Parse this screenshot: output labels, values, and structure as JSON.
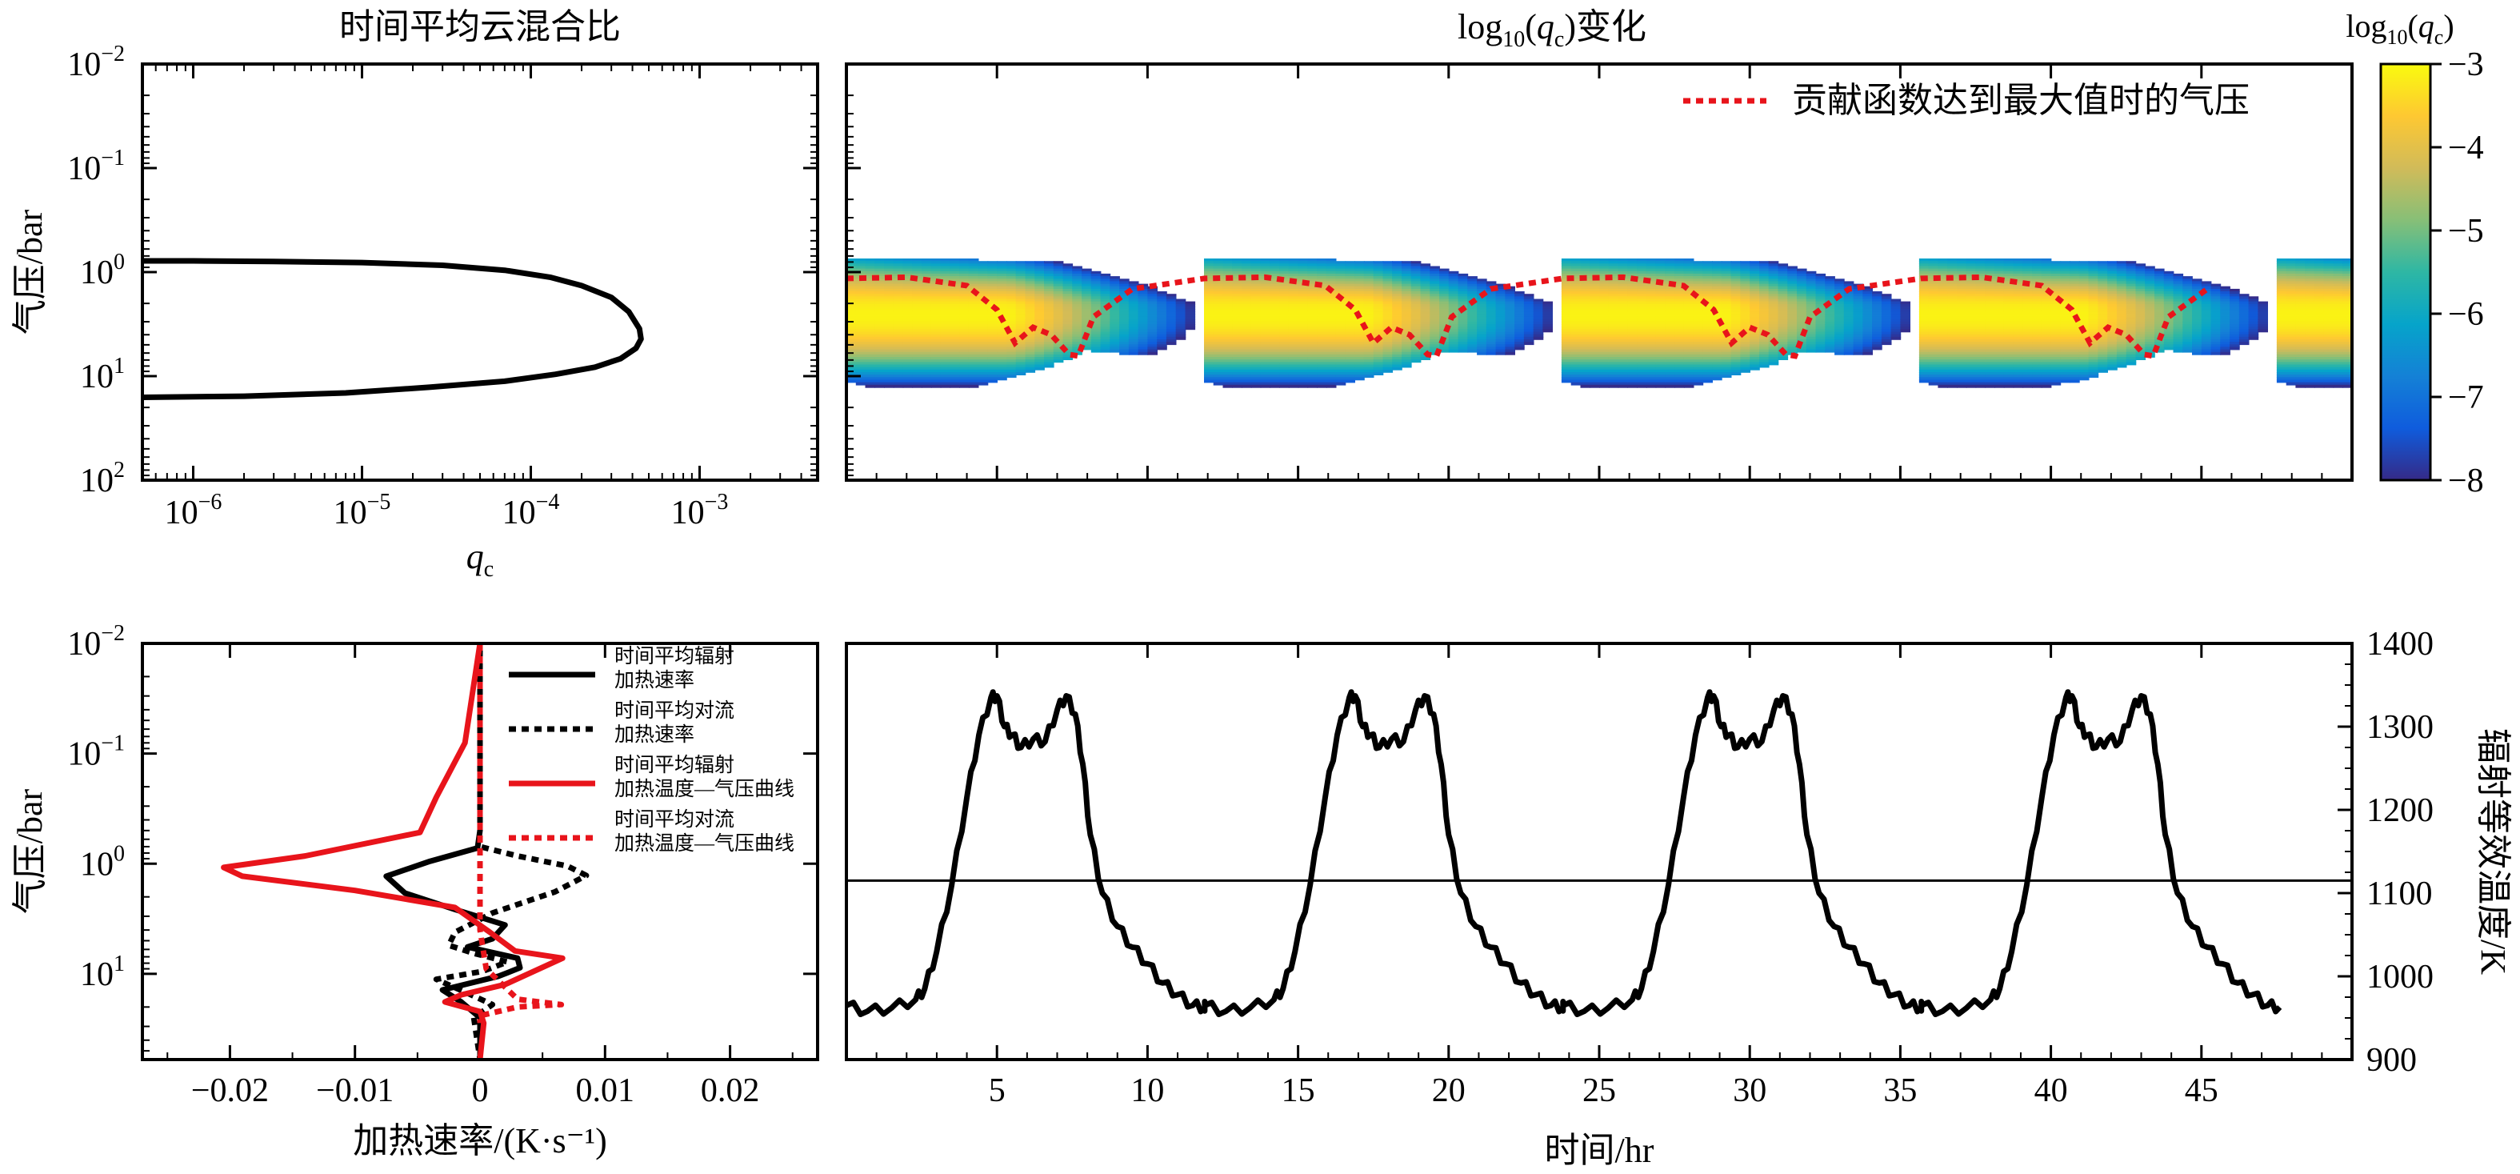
{
  "chart_data": [
    {
      "id": "panel-a",
      "type": "line",
      "title": "时间平均云混合比",
      "xlabel": "q",
      "xlabel_sub": "c",
      "ylabel": "气压/bar",
      "xscale": "log",
      "yscale": "log",
      "xlim": [
        5e-07,
        0.005
      ],
      "ylim": [
        100,
        0.01
      ],
      "y_inverted": true,
      "xticks": [
        1e-06,
        1e-05,
        0.0001,
        0.001
      ],
      "xtick_exponents": [
        "−6",
        "−5",
        "−4",
        "−3"
      ],
      "yticks": [
        0.01,
        0.1,
        1,
        10,
        100
      ],
      "ytick_exponents": [
        "−2",
        "−1",
        "0",
        "1",
        "2"
      ],
      "tick_base": "10",
      "series": [
        {
          "color": "#000000",
          "points": [
            [
              5e-07,
              0.78
            ],
            [
              1e-06,
              0.78
            ],
            [
              3e-06,
              0.79
            ],
            [
              1e-05,
              0.81
            ],
            [
              3e-05,
              0.86
            ],
            [
              7e-05,
              0.96
            ],
            [
              0.00013,
              1.12
            ],
            [
              0.0002,
              1.35
            ],
            [
              0.0003,
              1.75
            ],
            [
              0.00038,
              2.4
            ],
            [
              0.00044,
              3.5
            ],
            [
              0.00045,
              4.4
            ],
            [
              0.00042,
              5.4
            ],
            [
              0.00034,
              6.8
            ],
            [
              0.00024,
              8.2
            ],
            [
              0.00014,
              9.6
            ],
            [
              7e-05,
              11.2
            ],
            [
              2.5e-05,
              12.8
            ],
            [
              8e-06,
              14.5
            ],
            [
              2e-06,
              15.6
            ],
            [
              5e-07,
              16.0
            ]
          ]
        }
      ]
    },
    {
      "id": "panel-b",
      "type": "heatmap",
      "title_prefix": "log",
      "title_sub": "10",
      "title_mid": "(",
      "title_var": "q",
      "title_var_sub": "c",
      "title_suffix": ")变化",
      "legend": "贡献函数达到最大值时的气压",
      "colorbar_label_prefix": "log",
      "colorbar_label_sub": "10",
      "colorbar_label_mid": "(",
      "colorbar_label_var": "q",
      "colorbar_label_var_sub": "c",
      "colorbar_label_suffix": ")",
      "colorbar_range": [
        -8,
        -3
      ],
      "colorbar_ticks": [
        "−3",
        "−4",
        "−5",
        "−6",
        "−7",
        "−8"
      ],
      "colormap_stops": [
        "#352a87",
        "#0f5cdd",
        "#1481d6",
        "#06a4ca",
        "#2eb7a4",
        "#87bf77",
        "#d1bb59",
        "#fec832",
        "#f9fb0e"
      ],
      "xlim": [
        0,
        50
      ],
      "ylim": [
        100,
        0.01
      ],
      "period_hr": 11.9,
      "cycle_starts_hr": [
        0,
        11.9,
        23.8,
        35.7
      ],
      "upper_boundary_bar": [
        0.75,
        0.78
      ],
      "lower_boundary_bar": [
        5.5,
        19.0
      ],
      "peak_bar": 2.6,
      "contribution_pressure_bar": {
        "hr": [
          0,
          2,
          4,
          5,
          5.6,
          6.2,
          6.8,
          7.4,
          7.7,
          8.2,
          9.5,
          12.5,
          14.8,
          16.6,
          17.5,
          18.1,
          18.7,
          19.3,
          19.6
        ],
        "bar": [
          1.15,
          1.12,
          1.35,
          2.3,
          4.8,
          3.4,
          4.0,
          6.2,
          6.4,
          2.7,
          1.45,
          1.12,
          1.25,
          2.1,
          4.8,
          3.4,
          4.0,
          6.2,
          6.4
        ]
      }
    },
    {
      "id": "panel-c",
      "type": "line",
      "xlabel": "加热速率/(K·s⁻¹)",
      "ylabel": "气压/bar",
      "xlim": [
        -0.027,
        0.027
      ],
      "ylim": [
        60,
        0.01
      ],
      "yscale": "log",
      "y_inverted": true,
      "xticks": [
        -0.02,
        -0.01,
        0,
        0.01,
        0.02
      ],
      "xtick_labels": [
        "−0.02",
        "−0.01",
        "0",
        "0.01",
        "0.02"
      ],
      "yticks": [
        0.01,
        0.1,
        1,
        10
      ],
      "ytick_exponents": [
        "−2",
        "−1",
        "0",
        "1"
      ],
      "tick_base": "10",
      "series": [
        {
          "name": "时间平均辐射加热速率",
          "name_lines": [
            "时间平均辐射",
            "加热速率"
          ],
          "color": "#000000",
          "dash": "solid",
          "points": [
            [
              0,
              0.01
            ],
            [
              0,
              0.5
            ],
            [
              -0.0002,
              0.72
            ],
            [
              -0.004,
              0.95
            ],
            [
              -0.0075,
              1.3
            ],
            [
              -0.006,
              1.85
            ],
            [
              -0.002,
              2.6
            ],
            [
              0.002,
              3.6
            ],
            [
              0.001,
              4.8
            ],
            [
              -0.001,
              5.7
            ],
            [
              0.003,
              7.2
            ],
            [
              0.0032,
              8.8
            ],
            [
              0.0015,
              10.5
            ],
            [
              -0.003,
              14
            ],
            [
              -0.0015,
              18
            ],
            [
              0,
              25
            ],
            [
              0,
              60
            ]
          ]
        },
        {
          "name": "时间平均对流加热速率",
          "name_lines": [
            "时间平均对流",
            "加热速率"
          ],
          "color": "#000000",
          "dash": "dotted",
          "points": [
            [
              0,
              0.01
            ],
            [
              0,
              0.7
            ],
            [
              0.003,
              0.85
            ],
            [
              0.007,
              1.05
            ],
            [
              0.0085,
              1.28
            ],
            [
              0.006,
              1.8
            ],
            [
              0.001,
              2.8
            ],
            [
              -0.002,
              4.2
            ],
            [
              -0.0025,
              5.5
            ],
            [
              -0.0005,
              6.5
            ],
            [
              0.0022,
              7.8
            ],
            [
              0.0002,
              9.5
            ],
            [
              -0.0035,
              11.2
            ],
            [
              -0.001,
              15
            ],
            [
              0.001,
              19
            ],
            [
              -0.0005,
              25
            ],
            [
              0,
              60
            ]
          ]
        },
        {
          "name": "时间平均辐射加热温度—气压曲线",
          "name_lines": [
            "时间平均辐射",
            "加热温度—气压曲线"
          ],
          "color": "#e8141b",
          "dash": "solid",
          "points": [
            [
              0,
              0.01
            ],
            [
              -0.0012,
              0.08
            ],
            [
              -0.0035,
              0.25
            ],
            [
              -0.0048,
              0.52
            ],
            [
              -0.014,
              0.85
            ],
            [
              -0.0205,
              1.08
            ],
            [
              -0.019,
              1.3
            ],
            [
              -0.01,
              1.75
            ],
            [
              -0.002,
              2.5
            ],
            [
              0.0008,
              4.2
            ],
            [
              0.0028,
              6.2
            ],
            [
              0.0066,
              7.2
            ],
            [
              0.002,
              12.5
            ],
            [
              -0.0015,
              15.5
            ],
            [
              -0.0028,
              18
            ],
            [
              0,
              22
            ],
            [
              0.0003,
              28
            ],
            [
              0,
              60
            ]
          ]
        },
        {
          "name": "时间平均对流加热温度—气压曲线",
          "name_lines": [
            "时间平均对流",
            "加热温度—气压曲线"
          ],
          "color": "#e8141b",
          "dash": "dotted",
          "points": [
            [
              0,
              0.01
            ],
            [
              0,
              4
            ],
            [
              0.0005,
              9
            ],
            [
              0.003,
              17
            ],
            [
              0.0065,
              19
            ],
            [
              0.003,
              20
            ],
            [
              0,
              24
            ],
            [
              0,
              28
            ]
          ]
        }
      ]
    },
    {
      "id": "panel-d",
      "type": "line",
      "xlabel": "时间/hr",
      "ylabel": "辐射等效温度/K",
      "xlim": [
        0,
        50
      ],
      "ylim": [
        900,
        1400
      ],
      "xticks": [
        5,
        10,
        15,
        20,
        25,
        30,
        35,
        40,
        45
      ],
      "yticks": [
        900,
        1000,
        1100,
        1200,
        1300,
        1400
      ],
      "hline": 1115,
      "period_hr": 11.9,
      "cycle_starts_hr": [
        0,
        11.9,
        23.8,
        35.7
      ],
      "cycle_profile": {
        "hr": [
          0,
          0.7,
          1.5,
          2.3,
          2.6,
          3.0,
          3.5,
          4.0,
          4.4,
          4.8,
          5.0,
          5.25,
          5.5,
          5.8,
          6.2,
          6.6,
          7.0,
          7.3,
          7.6,
          7.85,
          8.1,
          8.5,
          9.0,
          9.5,
          10.0,
          10.5,
          11.0,
          11.5,
          11.9
        ],
        "temperature_K": [
          965,
          958,
          962,
          972,
          985,
          1030,
          1110,
          1215,
          1290,
          1335,
          1337,
          1300,
          1290,
          1275,
          1285,
          1282,
          1320,
          1337,
          1315,
          1255,
          1170,
          1100,
          1060,
          1035,
          1015,
          992,
          978,
          965,
          963
        ]
      }
    }
  ]
}
